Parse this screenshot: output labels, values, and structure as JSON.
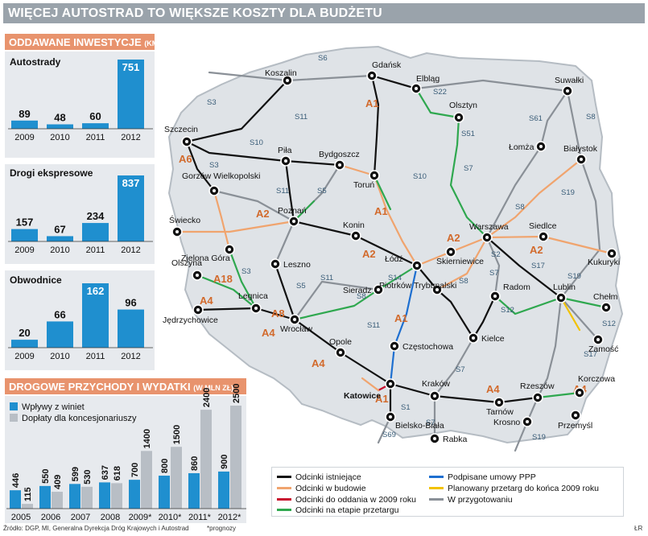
{
  "header": {
    "title": "WIĘCEJ AUTOSTRAD TO WIĘKSZE KOSZTY DLA BUDŻETU"
  },
  "investments": {
    "heading": "ODDAWANE INWESTYCJE",
    "heading_unit": "(KM)",
    "panels": [
      {
        "title": "Autostrady",
        "categories": [
          "2009",
          "2010",
          "2011",
          "2012"
        ],
        "values": [
          89,
          48,
          60,
          751
        ]
      },
      {
        "title": "Drogi ekspresowe",
        "categories": [
          "2009",
          "2010",
          "2011",
          "2012"
        ],
        "values": [
          157,
          67,
          234,
          837
        ]
      },
      {
        "title": "Obwodnice",
        "categories": [
          "2009",
          "2010",
          "2011",
          "2012"
        ],
        "values": [
          20,
          66,
          162,
          96
        ]
      }
    ]
  },
  "revenues": {
    "heading": "DROGOWE PRZYCHODY I WYDATKI",
    "heading_unit": "(W MLN ZŁ)",
    "legend": [
      "Wpływy z winiet",
      "Dopłaty dla koncesjonariuszy"
    ],
    "colors": {
      "winiety": "#1f8fcf",
      "doplaty": "#b8bec5"
    }
  },
  "chart_data": [
    {
      "type": "bar",
      "title": "Autostrady",
      "categories": [
        "2009",
        "2010",
        "2011",
        "2012"
      ],
      "values": [
        89,
        48,
        60,
        751
      ],
      "ylim": [
        0,
        751
      ]
    },
    {
      "type": "bar",
      "title": "Drogi ekspresowe",
      "categories": [
        "2009",
        "2010",
        "2011",
        "2012"
      ],
      "values": [
        157,
        67,
        234,
        837
      ],
      "ylim": [
        0,
        837
      ]
    },
    {
      "type": "bar",
      "title": "Obwodnice",
      "categories": [
        "2009",
        "2010",
        "2011",
        "2012"
      ],
      "values": [
        20,
        66,
        162,
        96
      ],
      "ylim": [
        0,
        162
      ]
    },
    {
      "type": "bar",
      "title": "DROGOWE PRZYCHODY I WYDATKI (W MLN ZŁ)",
      "categories": [
        "2005",
        "2006",
        "2007",
        "2008",
        "2009*",
        "2010*",
        "2011*",
        "2012*"
      ],
      "series": [
        {
          "name": "Wpływy z winiet",
          "values": [
            446,
            550,
            599,
            637,
            700,
            800,
            860,
            900
          ]
        },
        {
          "name": "Dopłaty dla koncesjonariuszy",
          "values": [
            115,
            409,
            530,
            618,
            1400,
            1500,
            2400,
            2500
          ]
        }
      ],
      "ylim": [
        0,
        2500
      ]
    }
  ],
  "map": {
    "cities": [
      "Gdańsk",
      "Elbląg",
      "Koszalin",
      "Olsztyn",
      "Suwałki",
      "Szczecin",
      "Piła",
      "Bydgoszcz",
      "Łomża",
      "Białystok",
      "Gorzów Wielkopolski",
      "Toruń",
      "Świecko",
      "Poznań",
      "Konin",
      "Warszawa",
      "Siedlce",
      "Zielona Góra",
      "Łódź",
      "Skierniewice",
      "Kukuryki",
      "Olszyna",
      "Leszno",
      "Sieradz",
      "Piotrków Trybunalski",
      "Radom",
      "Lublin",
      "Chełm",
      "Legnica",
      "Jędrzychowice",
      "Wrocław",
      "Opole",
      "Kielce",
      "Zamość",
      "Częstochowa",
      "Katowice",
      "Kraków",
      "Rzeszów",
      "Korczowa",
      "Tarnów",
      "Krosno",
      "Przemyśl",
      "Bielsko-Biała",
      "Rabka"
    ],
    "route_labels": [
      "S6",
      "S3",
      "S11",
      "S10",
      "A6",
      "S5",
      "S22",
      "A1",
      "S51",
      "S7",
      "S61",
      "S8",
      "S19",
      "A2",
      "S14",
      "S17",
      "S12",
      "A18",
      "A4",
      "A8",
      "S1",
      "S69"
    ],
    "legend": [
      {
        "label": "Odcinki istniejące",
        "color": "#111111"
      },
      {
        "label": "Odcinki w budowie",
        "color": "#f0a46e"
      },
      {
        "label": "Odcinki do oddania w 2009 roku",
        "color": "#c8102e"
      },
      {
        "label": "Odcinki na etapie przetargu",
        "color": "#2fa84f"
      },
      {
        "label": "Podpisane umowy PPP",
        "color": "#1e6fd0"
      },
      {
        "label": "Planowany przetarg do końca 2009 roku",
        "color": "#f2c200"
      },
      {
        "label": "W przygotowaniu",
        "color": "#8a9097"
      }
    ]
  },
  "footer": {
    "source": "Źródło: DGP, MI, Generalna Dyrekcja Dróg Krajowych i Autostrad",
    "note": "*prognozy",
    "credit": "ŁR"
  }
}
